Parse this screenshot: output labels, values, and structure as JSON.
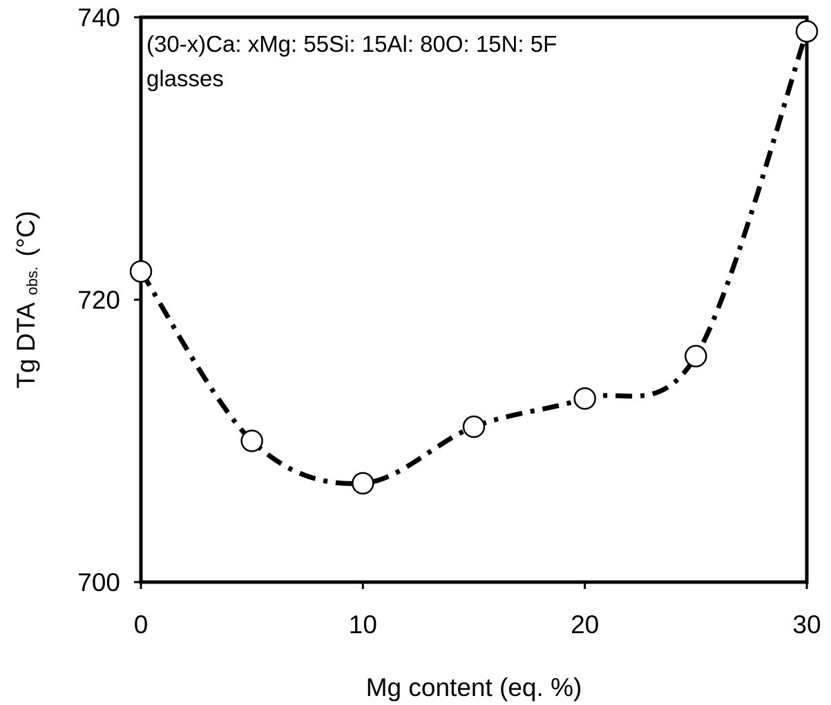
{
  "chart_data": {
    "type": "scatter",
    "x": [
      0,
      5,
      10,
      15,
      20,
      25,
      30
    ],
    "series": [
      {
        "values": [
          722,
          710,
          707,
          711,
          713,
          716,
          739
        ],
        "marker": "open-circle",
        "line": "dashed-smooth"
      }
    ],
    "xlabel": "Mg content (eq. %)",
    "ylabel_main": "Tg DTA",
    "ylabel_sub": "obs.",
    "ylabel_unit": "(°C)",
    "xlim": [
      0,
      30
    ],
    "ylim": [
      700,
      740
    ],
    "xticks": [
      0,
      10,
      20,
      30
    ],
    "yticks": [
      700,
      720,
      740
    ],
    "annotation_line1": "(30-x)Ca: xMg: 55Si: 15Al: 80O: 15N: 5F",
    "annotation_line2": "glasses",
    "grid": false,
    "colors": {
      "line": "#000000",
      "marker_fill": "#ffffff",
      "frame": "#000000"
    }
  }
}
